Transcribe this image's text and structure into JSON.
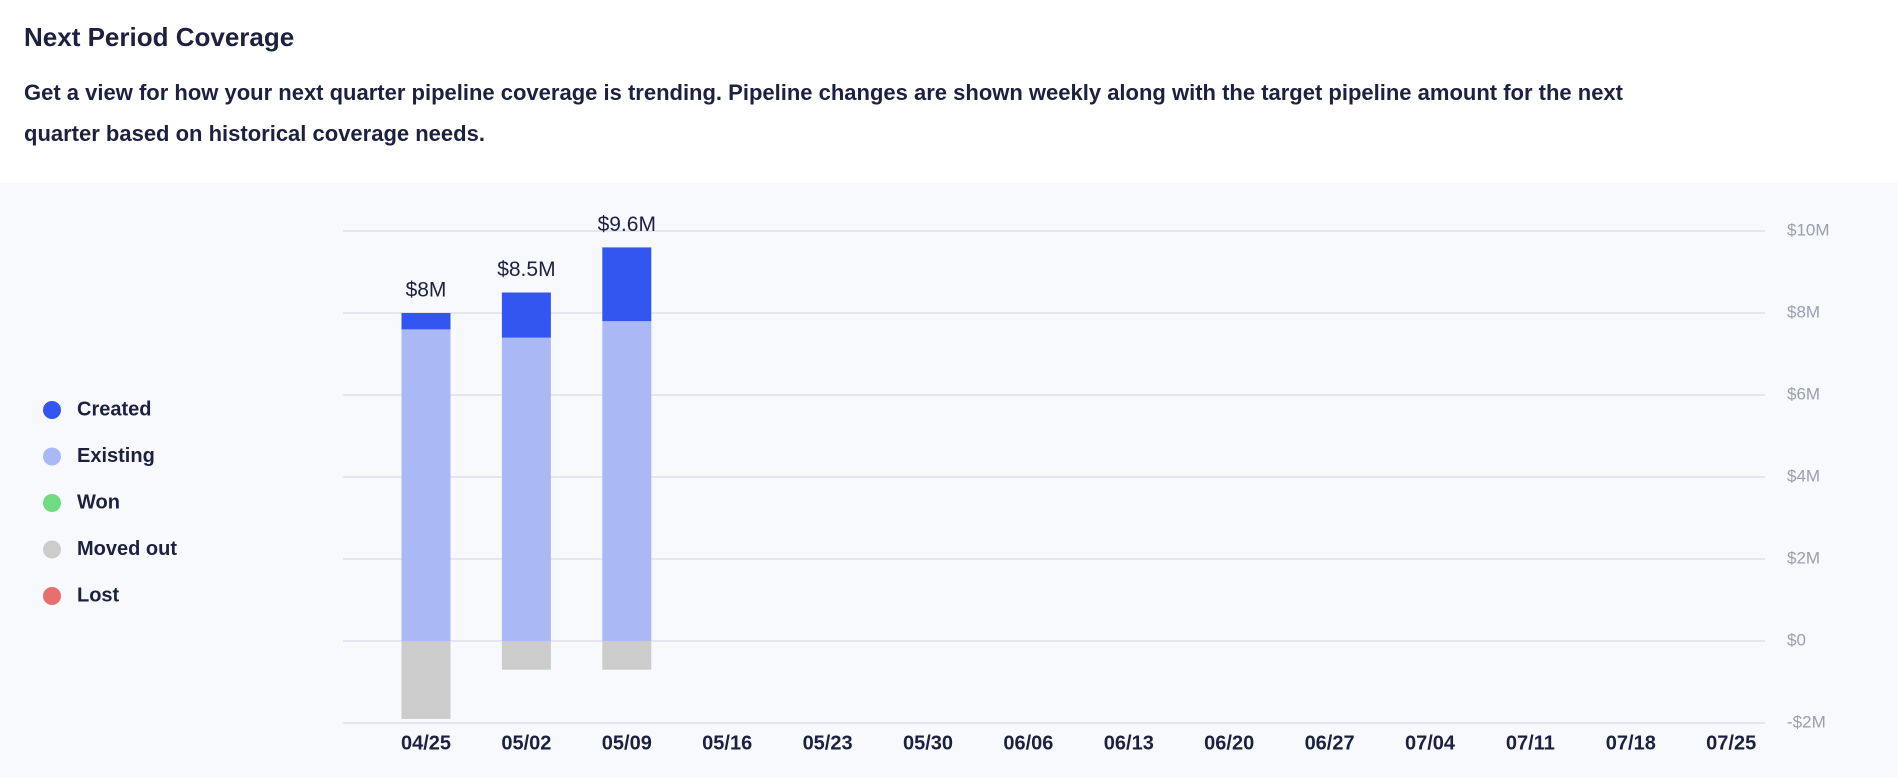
{
  "header": {
    "title": "Next Period Coverage",
    "description_lines": [
      "Get a view for how your next quarter pipeline coverage is trending. Pipeline changes are shown weekly along with the target pipeline amount for the next",
      "quarter based on historical coverage needs."
    ]
  },
  "chart_data": {
    "type": "stacked_bar",
    "categories": [
      "04/25",
      "05/02",
      "05/09",
      "05/16",
      "05/23",
      "05/30",
      "06/06",
      "06/13",
      "06/20",
      "06/27",
      "07/04",
      "07/11",
      "07/18",
      "07/25"
    ],
    "series": [
      {
        "name": "Created",
        "color": "#3355f0",
        "values": [
          0.4,
          1.1,
          1.8,
          null,
          null,
          null,
          null,
          null,
          null,
          null,
          null,
          null,
          null,
          null
        ]
      },
      {
        "name": "Existing",
        "color": "#aab8f5",
        "values": [
          7.6,
          7.4,
          7.8,
          null,
          null,
          null,
          null,
          null,
          null,
          null,
          null,
          null,
          null,
          null
        ]
      },
      {
        "name": "Won",
        "color": "#6fdc83",
        "values": [
          0,
          0,
          0,
          null,
          null,
          null,
          null,
          null,
          null,
          null,
          null,
          null,
          null,
          null
        ]
      },
      {
        "name": "Moved out",
        "color": "#cccccc",
        "values": [
          -1.9,
          -0.7,
          -0.7,
          null,
          null,
          null,
          null,
          null,
          null,
          null,
          null,
          null,
          null,
          null
        ]
      },
      {
        "name": "Lost",
        "color": "#e76f6f",
        "values": [
          0,
          0,
          0,
          null,
          null,
          null,
          null,
          null,
          null,
          null,
          null,
          null,
          null,
          null
        ]
      }
    ],
    "totals": {
      "values": [
        8,
        8.5,
        9.6,
        null,
        null,
        null,
        null,
        null,
        null,
        null,
        null,
        null,
        null,
        null
      ],
      "value_labels": [
        "$8M",
        "$8.5M",
        "$9.6M",
        null,
        null,
        null,
        null,
        null,
        null,
        null,
        null,
        null,
        null,
        null
      ]
    },
    "ylim": [
      -2,
      10
    ],
    "yticks": [
      {
        "value": -2,
        "label": "-$2M"
      },
      {
        "value": 0,
        "label": "$0"
      },
      {
        "value": 2,
        "label": "$2M"
      },
      {
        "value": 4,
        "label": "$4M"
      },
      {
        "value": 6,
        "label": "$6M"
      },
      {
        "value": 8,
        "label": "$8M"
      },
      {
        "value": 10,
        "label": "$10M"
      }
    ],
    "grid": true,
    "legend": "left"
  }
}
